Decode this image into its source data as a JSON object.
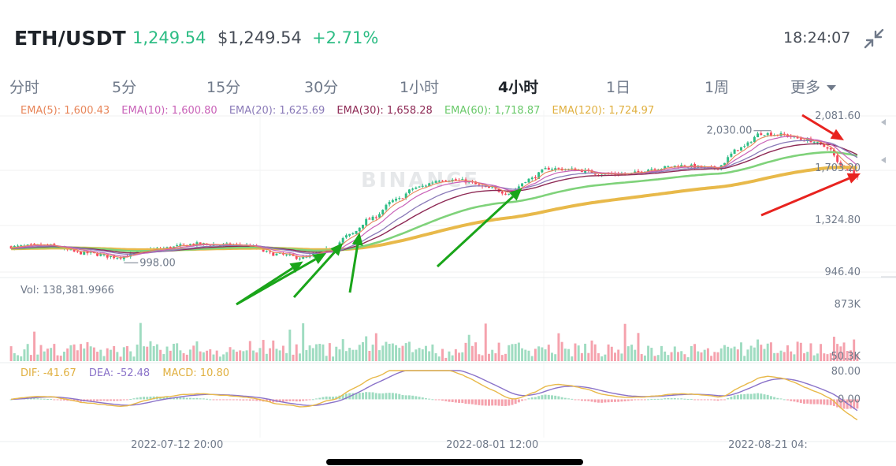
{
  "header": {
    "symbol": "ETH/USDT",
    "price": "1,249.54",
    "price_usd": "$1,249.54",
    "change": "+2.71%",
    "time": "18:24:07",
    "collapse_icon": "collapse-arrows-icon"
  },
  "tabs": [
    {
      "label": "分时"
    },
    {
      "label": "5分"
    },
    {
      "label": "15分"
    },
    {
      "label": "30分"
    },
    {
      "label": "1小时"
    },
    {
      "label": "4小时",
      "active": true
    },
    {
      "label": "1日"
    },
    {
      "label": "1周"
    },
    {
      "label": "更多"
    }
  ],
  "indicators": {
    "ema5": "EMA(5): 1,600.43",
    "ema10": "EMA(10): 1,600.80",
    "ema20": "EMA(20): 1,625.69",
    "ema30": "EMA(30): 1,658.28",
    "ema60": "EMA(60): 1,718.87",
    "ema120": "EMA(120): 1,724.97",
    "volume": "Vol: 138,381.9966",
    "dif": "DIF: -41.67",
    "dea": "DEA: -52.48",
    "macd": "MACD: 10.80"
  },
  "colors": {
    "ema5": "#e8865a",
    "ema10": "#c962b8",
    "ema20": "#8a7ab8",
    "ema30": "#8e2a55",
    "ema60": "#7fd27a",
    "ema120": "#e8b94a",
    "up": "#2ebd85",
    "down": "#f6465d",
    "dif": "#e8b94a",
    "dea": "#8a72c9",
    "arrow_green": "#1aa51a",
    "arrow_red": "#e8231f"
  },
  "watermark": "BINANCE",
  "chart_data": {
    "type": "candlestick",
    "symbol": "ETH/USDT",
    "interval": "4小时",
    "price_axis": [
      "2,081.60",
      "1,703.20",
      "1,324.80",
      "946.40"
    ],
    "price_axis_values": [
      2081.6,
      1703.2,
      1324.8,
      946.4
    ],
    "ylim": [
      946.4,
      2081.6
    ],
    "annotations": {
      "high_label": "2,030.00",
      "low_label": "998.00"
    },
    "volume_axis": [
      "873K",
      "50.3K"
    ],
    "volume_range": [
      50300,
      873000
    ],
    "macd_axis": [
      "80.00",
      "0.00"
    ],
    "macd_range": [
      -100,
      80
    ],
    "x_labels": [
      "2022-07-12 20:00",
      "2022-08-01 12:00",
      "2022-08-21 04:"
    ],
    "x_label_index": [
      50,
      145,
      240
    ],
    "bars": 256,
    "close_keypoints": [
      [
        0,
        1130
      ],
      [
        10,
        1140
      ],
      [
        22,
        1085
      ],
      [
        32,
        1055
      ],
      [
        44,
        1115
      ],
      [
        56,
        1150
      ],
      [
        70,
        1140
      ],
      [
        80,
        1075
      ],
      [
        88,
        1050
      ],
      [
        96,
        1110
      ],
      [
        102,
        1215
      ],
      [
        108,
        1330
      ],
      [
        116,
        1470
      ],
      [
        122,
        1560
      ],
      [
        130,
        1620
      ],
      [
        136,
        1610
      ],
      [
        144,
        1555
      ],
      [
        150,
        1520
      ],
      [
        156,
        1620
      ],
      [
        162,
        1700
      ],
      [
        170,
        1690
      ],
      [
        178,
        1660
      ],
      [
        186,
        1660
      ],
      [
        194,
        1700
      ],
      [
        202,
        1720
      ],
      [
        212,
        1700
      ],
      [
        220,
        1850
      ],
      [
        226,
        1955
      ],
      [
        232,
        1945
      ],
      [
        240,
        1905
      ],
      [
        246,
        1855
      ],
      [
        250,
        1720
      ],
      [
        256,
        1640
      ]
    ],
    "ema_series": [
      "EMA(5)",
      "EMA(10)",
      "EMA(20)",
      "EMA(30)",
      "EMA(60)",
      "EMA(120)"
    ],
    "markers": [
      {
        "type": "green-arrow",
        "bar": 88
      },
      {
        "type": "green-arrow",
        "bar": 95
      },
      {
        "type": "green-arrow",
        "bar": 100
      },
      {
        "type": "green-arrow",
        "bar": 105
      },
      {
        "type": "green-arrow",
        "bar": 154
      },
      {
        "type": "red-arrow",
        "bar": 251
      },
      {
        "type": "red-arrow",
        "bar": 256
      }
    ]
  }
}
